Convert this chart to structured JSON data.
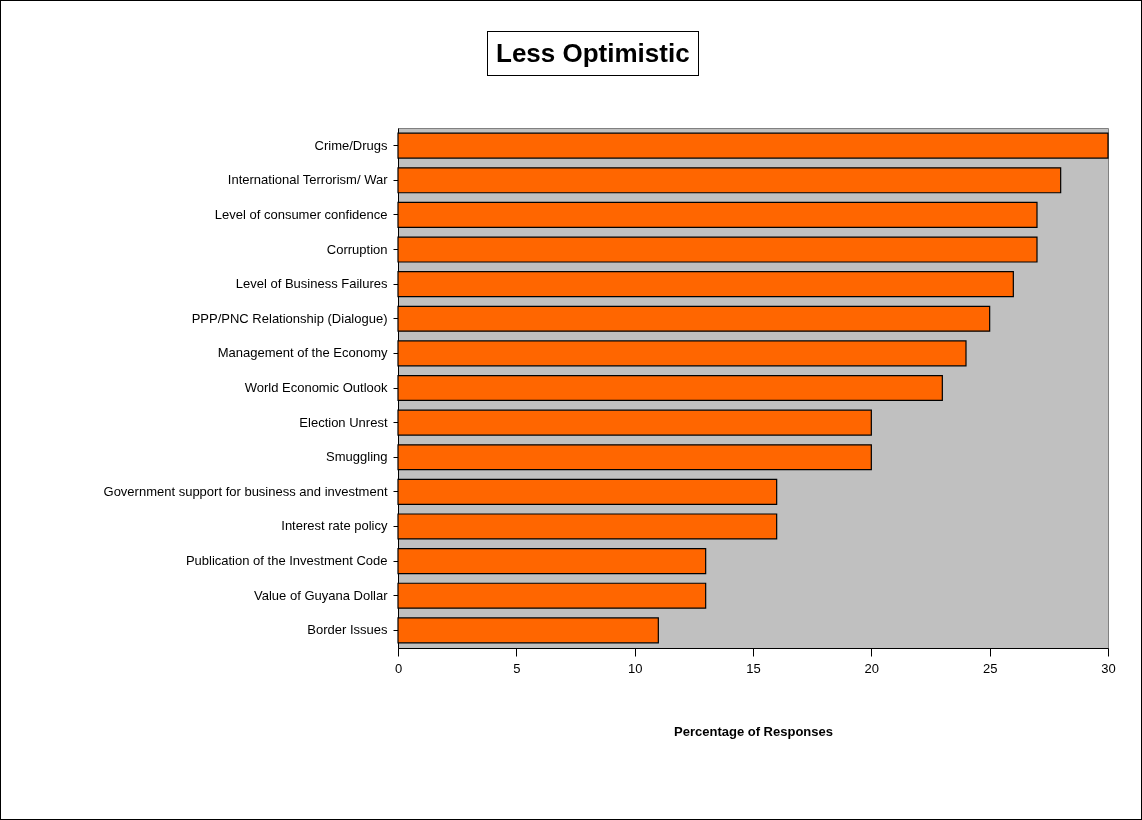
{
  "chart_data": {
    "type": "bar",
    "orientation": "horizontal",
    "title": "Less Optimistic",
    "xlabel": "Percentage of Responses",
    "categories": [
      "Crime/Drugs",
      "International Terrorism/ War",
      "Level of consumer confidence",
      "Corruption",
      "Level of Business Failures",
      "PPP/PNC Relationship (Dialogue)",
      "Management of the Economy",
      "World Economic Outlook",
      "Election Unrest",
      "Smuggling",
      "Government support for business and investment",
      "Interest rate policy",
      "Publication of the Investment Code",
      "Value of Guyana Dollar",
      "Border Issues"
    ],
    "values": [
      30,
      28,
      27,
      27,
      26,
      25,
      24,
      23,
      20,
      20,
      16,
      16,
      13,
      13,
      11
    ],
    "color": "#ff6600",
    "xlim": [
      0,
      30
    ],
    "xticks": [
      0,
      5,
      10,
      15,
      20,
      25,
      30
    ]
  }
}
